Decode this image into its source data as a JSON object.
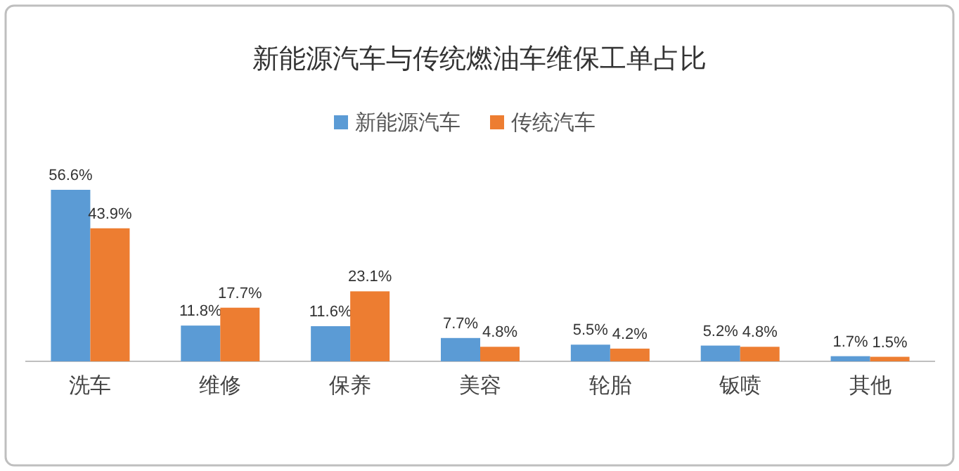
{
  "chart_data": {
    "type": "bar",
    "title": "新能源汽车与传统燃油车维保工单占比",
    "categories": [
      "洗车",
      "维修",
      "保养",
      "美容",
      "轮胎",
      "钣喷",
      "其他"
    ],
    "series": [
      {
        "name": "新能源汽车",
        "color": "#5b9bd5",
        "values": [
          56.6,
          11.8,
          11.6,
          7.7,
          5.5,
          5.2,
          1.7
        ],
        "value_labels": [
          "56.6%",
          "11.8%",
          "11.6%",
          "7.7%",
          "5.5%",
          "5.2%",
          "1.7%"
        ]
      },
      {
        "name": "传统汽车",
        "color": "#ed7d31",
        "values": [
          43.9,
          17.7,
          23.1,
          4.8,
          4.2,
          4.8,
          1.5
        ],
        "value_labels": [
          "43.9%",
          "17.7%",
          "23.1%",
          "4.8%",
          "4.2%",
          "4.8%",
          "1.5%"
        ]
      }
    ],
    "legend": "top",
    "grid": false
  }
}
